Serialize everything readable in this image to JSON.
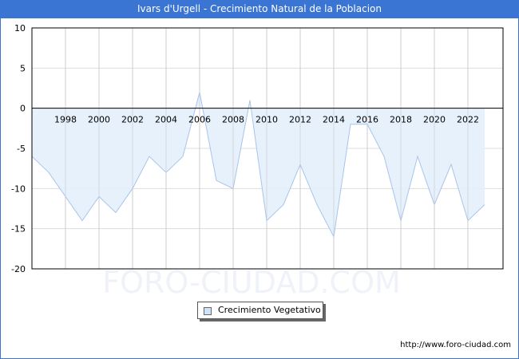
{
  "title": "Ivars d'Urgell - Crecimiento Natural de la Poblacion",
  "legend": {
    "label": "Crecimiento Vegetativo",
    "color": "#ddeefc"
  },
  "watermark": "FORO-CIUDAD.COM",
  "footer": {
    "url": "http://www.foro-ciudad.com"
  },
  "colors": {
    "header": "#3a75d4",
    "fill": "#e3f0fc",
    "line": "#a8c4ec",
    "grid": "#cccccc"
  },
  "chart_data": {
    "type": "area",
    "title": "Ivars d'Urgell - Crecimiento Natural de la Poblacion",
    "xlabel": "",
    "ylabel": "",
    "ylim": [
      -20,
      10
    ],
    "yticks": [
      10,
      5,
      0,
      -5,
      -10,
      -15,
      -20
    ],
    "xticks": [
      1998,
      2000,
      2002,
      2004,
      2006,
      2008,
      2010,
      2012,
      2014,
      2016,
      2018,
      2020,
      2022
    ],
    "grid": true,
    "legend_position": "bottom",
    "x": [
      1996,
      1997,
      1998,
      1999,
      2000,
      2001,
      2002,
      2003,
      2004,
      2005,
      2006,
      2007,
      2008,
      2009,
      2010,
      2011,
      2012,
      2013,
      2014,
      2015,
      2016,
      2017,
      2018,
      2019,
      2020,
      2021,
      2022,
      2023
    ],
    "series": [
      {
        "name": "Crecimiento Vegetativo",
        "values": [
          -6,
          -8,
          -11,
          -14,
          -11,
          -13,
          -10,
          -6,
          -8,
          -6,
          2,
          -9,
          -10,
          1,
          -14,
          -12,
          -7,
          -12,
          -16,
          -2,
          -2,
          -6,
          -14,
          -6,
          -12,
          -7,
          -14,
          -12
        ]
      }
    ]
  }
}
